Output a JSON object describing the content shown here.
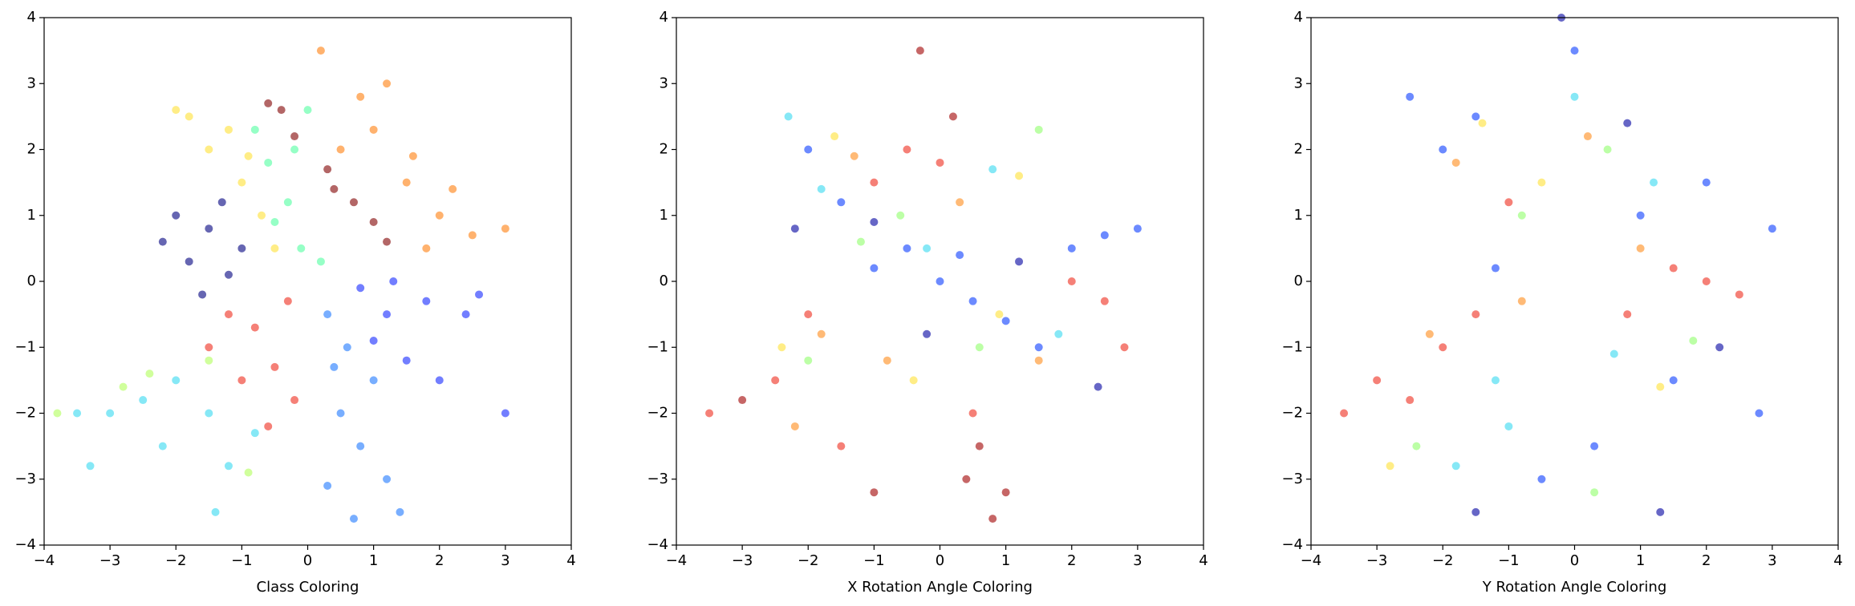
{
  "chart_data": [
    {
      "type": "scatter",
      "xlabel": "Class Coloring",
      "xlim": [
        -4,
        4
      ],
      "ylim": [
        -4,
        4
      ],
      "xticks": [
        {
          "value": -4,
          "label": "−4"
        },
        {
          "value": -3,
          "label": "−3"
        },
        {
          "value": -2,
          "label": "−2"
        },
        {
          "value": -1,
          "label": "−1"
        },
        0,
        1,
        2,
        3,
        4
      ],
      "yticks": [
        {
          "value": -4,
          "label": "−4"
        },
        {
          "value": -3,
          "label": "−3"
        },
        {
          "value": -2,
          "label": "−2"
        },
        {
          "value": -1,
          "label": "−1"
        },
        0,
        1,
        2,
        3,
        4
      ],
      "series": [
        {
          "color": "#00007f",
          "x": [
            -1.8,
            -1.5,
            -1.2,
            -2.0,
            -1.0,
            -1.6,
            -2.2,
            -1.3
          ],
          "values": [
            0.3,
            0.8,
            0.1,
            1.0,
            0.5,
            -0.2,
            0.6,
            1.2
          ]
        },
        {
          "color": "#ffe135",
          "x": [
            -1.5,
            -1.0,
            -0.7,
            -1.8,
            -1.2,
            -0.5,
            -2.0,
            -0.9
          ],
          "values": [
            2.0,
            1.5,
            1.0,
            2.5,
            2.3,
            0.5,
            2.6,
            1.9
          ]
        },
        {
          "color": "#50ffa0",
          "x": [
            -0.6,
            -0.3,
            -0.1,
            -0.8,
            -0.2,
            0.2,
            -0.5,
            0.0
          ],
          "values": [
            1.8,
            1.2,
            0.5,
            2.3,
            2.0,
            0.3,
            0.9,
            2.6
          ]
        },
        {
          "color": "#800000",
          "x": [
            -0.6,
            -0.2,
            0.3,
            0.7,
            1.0,
            -0.4,
            0.4,
            1.2
          ],
          "values": [
            2.7,
            2.2,
            1.7,
            1.2,
            0.9,
            2.6,
            1.4,
            0.6
          ]
        },
        {
          "color": "#ff7f0e",
          "x": [
            0.5,
            1.0,
            1.5,
            2.0,
            2.5,
            3.0,
            1.2,
            0.2,
            2.2,
            1.8,
            0.8,
            1.6
          ],
          "values": [
            2.0,
            2.3,
            1.5,
            1.0,
            0.7,
            0.8,
            3.0,
            3.5,
            1.4,
            0.5,
            2.8,
            1.9
          ]
        },
        {
          "color": "#1428ff",
          "x": [
            0.8,
            1.2,
            1.8,
            2.4,
            3.0,
            1.5,
            2.0,
            1.0,
            2.6,
            1.3
          ],
          "values": [
            -0.1,
            -0.5,
            -0.3,
            -0.5,
            -2.0,
            -1.2,
            -1.5,
            -0.9,
            -0.2,
            0.0
          ]
        },
        {
          "color": "#1e78ff",
          "x": [
            0.3,
            0.6,
            1.0,
            0.5,
            0.8,
            1.2,
            0.4,
            0.7,
            0.3,
            1.4
          ],
          "values": [
            -0.5,
            -1.0,
            -1.5,
            -2.0,
            -2.5,
            -3.0,
            -1.3,
            -3.6,
            -3.1,
            -3.5
          ]
        },
        {
          "color": "#ee2c1c",
          "x": [
            -0.3,
            -0.8,
            -1.2,
            -0.5,
            -1.5,
            -0.2,
            -1.0,
            -0.6
          ],
          "values": [
            -0.3,
            -0.7,
            -0.5,
            -1.3,
            -1.0,
            -1.8,
            -1.5,
            -2.2
          ]
        },
        {
          "color": "#36d8f0",
          "x": [
            -2.0,
            -2.5,
            -1.5,
            -3.0,
            -3.5,
            -1.2,
            -2.2,
            -0.8,
            -1.4,
            -3.3
          ],
          "values": [
            -1.5,
            -1.8,
            -2.0,
            -2.0,
            -2.0,
            -2.8,
            -2.5,
            -2.3,
            -3.5,
            -2.8
          ]
        },
        {
          "color": "#b0ff5a",
          "x": [
            -3.8,
            -2.8,
            -1.5,
            -0.9,
            -2.4
          ],
          "values": [
            -2.0,
            -1.6,
            -1.2,
            -2.9,
            -1.4
          ]
        }
      ]
    },
    {
      "type": "scatter",
      "xlabel": "X Rotation Angle Coloring",
      "xlim": [
        -4,
        4
      ],
      "ylim": [
        -4,
        4
      ],
      "xticks": [
        {
          "value": -4,
          "label": "−4"
        },
        {
          "value": -3,
          "label": "−3"
        },
        {
          "value": -2,
          "label": "−2"
        },
        {
          "value": -1,
          "label": "−1"
        },
        0,
        1,
        2,
        3,
        4
      ],
      "yticks": [
        {
          "value": -4,
          "label": "−4"
        },
        {
          "value": -3,
          "label": "−3"
        },
        {
          "value": -2,
          "label": "−2"
        },
        {
          "value": -1,
          "label": "−1"
        },
        0,
        1,
        2,
        3,
        4
      ],
      "series": [
        {
          "color": "#a00000",
          "x": [
            -0.3,
            0.2,
            0.6,
            -1.0,
            0.4,
            -3.0,
            1.0,
            0.8
          ],
          "values": [
            3.5,
            2.5,
            -2.5,
            -3.2,
            -3.0,
            -1.8,
            -3.2,
            -3.6
          ]
        },
        {
          "color": "#ee2c1c",
          "x": [
            -0.5,
            0.0,
            -2.0,
            -2.5,
            2.5,
            2.8,
            0.5,
            -3.5,
            -1.5,
            -1.0,
            2.0
          ],
          "values": [
            2.0,
            1.8,
            -0.5,
            -1.5,
            -0.3,
            -1.0,
            -2.0,
            -2.0,
            -2.5,
            1.5,
            0.0
          ]
        },
        {
          "color": "#ff8c1a",
          "x": [
            -1.3,
            -0.8,
            1.5,
            -2.2,
            0.3,
            -1.8
          ],
          "values": [
            1.9,
            -1.2,
            -1.2,
            -2.2,
            1.2,
            -0.8
          ]
        },
        {
          "color": "#ffe135",
          "x": [
            -1.6,
            1.2,
            -0.4,
            0.9,
            -2.4
          ],
          "values": [
            2.2,
            1.6,
            -1.5,
            -0.5,
            -1.0
          ]
        },
        {
          "color": "#90ff6a",
          "x": [
            -1.2,
            1.5,
            -0.6,
            0.6,
            -2.0
          ],
          "values": [
            0.6,
            2.3,
            1.0,
            -1.0,
            -1.2
          ]
        },
        {
          "color": "#36d8f0",
          "x": [
            -1.8,
            0.8,
            -0.2,
            1.8,
            -2.3
          ],
          "values": [
            1.4,
            1.7,
            0.5,
            -0.8,
            2.5
          ]
        },
        {
          "color": "#0a3cff",
          "x": [
            -2.0,
            -1.5,
            -0.5,
            0.0,
            0.5,
            1.0,
            1.5,
            2.0,
            2.5,
            3.0,
            -1.0,
            0.3
          ],
          "values": [
            2.0,
            1.2,
            0.5,
            0.0,
            -0.3,
            -0.6,
            -1.0,
            0.5,
            0.7,
            0.8,
            0.2,
            0.4
          ]
        },
        {
          "color": "#0000a0",
          "x": [
            -2.2,
            -1.0,
            1.2,
            2.4,
            -0.2
          ],
          "values": [
            0.8,
            0.9,
            0.3,
            -1.6,
            -0.8
          ]
        }
      ]
    },
    {
      "type": "scatter",
      "xlabel": "Y Rotation Angle Coloring",
      "xlim": [
        -4,
        4
      ],
      "ylim": [
        -4,
        4
      ],
      "xticks": [
        {
          "value": -4,
          "label": "−4"
        },
        {
          "value": -3,
          "label": "−3"
        },
        {
          "value": -2,
          "label": "−2"
        },
        {
          "value": -1,
          "label": "−1"
        },
        0,
        1,
        2,
        3,
        4
      ],
      "yticks": [
        {
          "value": -4,
          "label": "−4"
        },
        {
          "value": -3,
          "label": "−3"
        },
        {
          "value": -2,
          "label": "−2"
        },
        {
          "value": -1,
          "label": "−1"
        },
        0,
        1,
        2,
        3,
        4
      ],
      "series": [
        {
          "color": "#ee2c1c",
          "x": [
            -3.0,
            -2.0,
            -1.5,
            -3.5,
            1.5,
            2.0,
            2.5,
            -2.5,
            0.8,
            -1.0
          ],
          "values": [
            -1.5,
            -1.0,
            -0.5,
            -2.0,
            0.2,
            0.0,
            -0.2,
            -1.8,
            -0.5,
            1.2
          ]
        },
        {
          "color": "#ff8c1a",
          "x": [
            -2.2,
            -1.8,
            1.0,
            0.2,
            -0.8
          ],
          "values": [
            -0.8,
            1.8,
            0.5,
            2.2,
            -0.3
          ]
        },
        {
          "color": "#ffe135",
          "x": [
            -0.5,
            1.3,
            -2.8,
            -1.4
          ],
          "values": [
            1.5,
            -1.6,
            -2.8,
            2.4
          ]
        },
        {
          "color": "#90ff6a",
          "x": [
            -0.8,
            0.5,
            1.8,
            -2.4,
            0.3
          ],
          "values": [
            1.0,
            2.0,
            -0.9,
            -2.5,
            -3.2
          ]
        },
        {
          "color": "#36d8f0",
          "x": [
            -1.2,
            0.0,
            1.2,
            -1.8,
            0.6,
            -1.0
          ],
          "values": [
            -1.5,
            2.8,
            1.5,
            -2.8,
            -1.1,
            -2.2
          ]
        },
        {
          "color": "#0a3cff",
          "x": [
            -2.0,
            -1.5,
            0.0,
            1.0,
            2.0,
            3.0,
            0.3,
            -0.5,
            1.5,
            2.8,
            -2.5,
            -1.2
          ],
          "values": [
            2.0,
            2.5,
            3.5,
            1.0,
            1.5,
            0.8,
            -2.5,
            -3.0,
            -1.5,
            -2.0,
            2.8,
            0.2
          ]
        },
        {
          "color": "#0000a0",
          "x": [
            -0.2,
            0.8,
            -1.5,
            2.2,
            1.3
          ],
          "values": [
            4.0,
            2.4,
            -3.5,
            -1.0,
            -3.5
          ]
        }
      ]
    }
  ]
}
